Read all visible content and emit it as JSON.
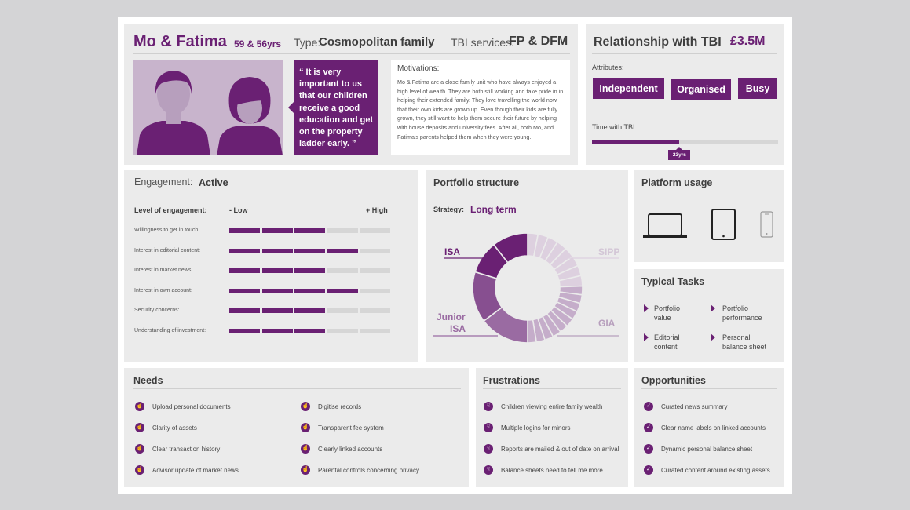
{
  "colors": {
    "accent": "#6a2073",
    "accent_light": "#c8b4cc",
    "panel": "#ebebeb"
  },
  "profile": {
    "names": "Mo & Fatima",
    "ages": "59 & 56yrs",
    "type_label": "Type:",
    "type_value": "Cosmopolitan family",
    "services_label": "TBI services:",
    "services_value": "FP & DFM",
    "quote": "“ It is very important to us that our children receive a good education and get on the property ladder early. ”",
    "motivations_label": "Motivations:",
    "motivations_text": "Mo & Fatima are a close family unit who have always enjoyed a high level of wealth. They are both still working and take pride in in helping their extended family. They love travelling the world now that their own kids are grown up. Even though their kids are fully grown, they still want to help them secure their future by helping with house deposits and university fees. After all, both Mo, and Fatima's parents helped them when they were  young."
  },
  "relationship": {
    "title": "Relationship with TBI",
    "amount": "£3.5M",
    "attributes_label": "Attributes:",
    "attributes": [
      "Independent",
      "Organised",
      "Busy"
    ],
    "time_label": "Time with TBI:",
    "time_value": "23yrs",
    "time_fraction": 0.47
  },
  "engagement": {
    "label": "Engagement:",
    "value": "Active",
    "level_label": "Level of engagement:",
    "low_label": "- Low",
    "high_label": "+ High",
    "rows": [
      {
        "label": "Willingness to get in touch:",
        "level": 3
      },
      {
        "label": "Interest in editorial content:",
        "level": 4
      },
      {
        "label": "Interest in market news:",
        "level": 3
      },
      {
        "label": "Interest in own account:",
        "level": 4
      },
      {
        "label": "Security concerns:",
        "level": 3
      },
      {
        "label": "Understanding of investment:",
        "level": 3
      }
    ]
  },
  "portfolio": {
    "title": "Portfolio structure",
    "strategy_label": "Strategy:",
    "strategy_value": "Long term",
    "labels": {
      "isa": "ISA",
      "sipp": "SIPP",
      "junior1": "Junior",
      "junior2": "ISA",
      "gia": "GIA"
    }
  },
  "platform": {
    "title": "Platform usage",
    "devices": [
      "laptop-icon",
      "tablet-icon",
      "phone-icon"
    ]
  },
  "tasks": {
    "title": "Typical Tasks",
    "items": [
      {
        "l1": "Portfolio",
        "l2": "value"
      },
      {
        "l1": "Portfolio",
        "l2": "performance"
      },
      {
        "l1": "Editorial",
        "l2": "content"
      },
      {
        "l1": "Personal",
        "l2": "balance sheet"
      }
    ]
  },
  "needs": {
    "title": "Needs",
    "left": [
      "Upload personal documents",
      "Clarity of assets",
      "Clear transaction history",
      "Advisor update of market news"
    ],
    "right": [
      "Digitise records",
      "Transparent fee system",
      "Clearly linked accounts",
      "Parental controls concerning privacy"
    ]
  },
  "frustrations": {
    "title": "Frustrations",
    "items": [
      "Children viewing entire family wealth",
      "Multiple logins for minors",
      "Reports are mailed & out of date on arrival",
      "Balance sheets need to tell me more"
    ]
  },
  "opportunities": {
    "title": "Opportunities",
    "items": [
      "Curated news summary",
      "Clear name labels on linked accounts",
      "Dynamic personal balance sheet",
      "Curated content around existing assets"
    ]
  }
}
